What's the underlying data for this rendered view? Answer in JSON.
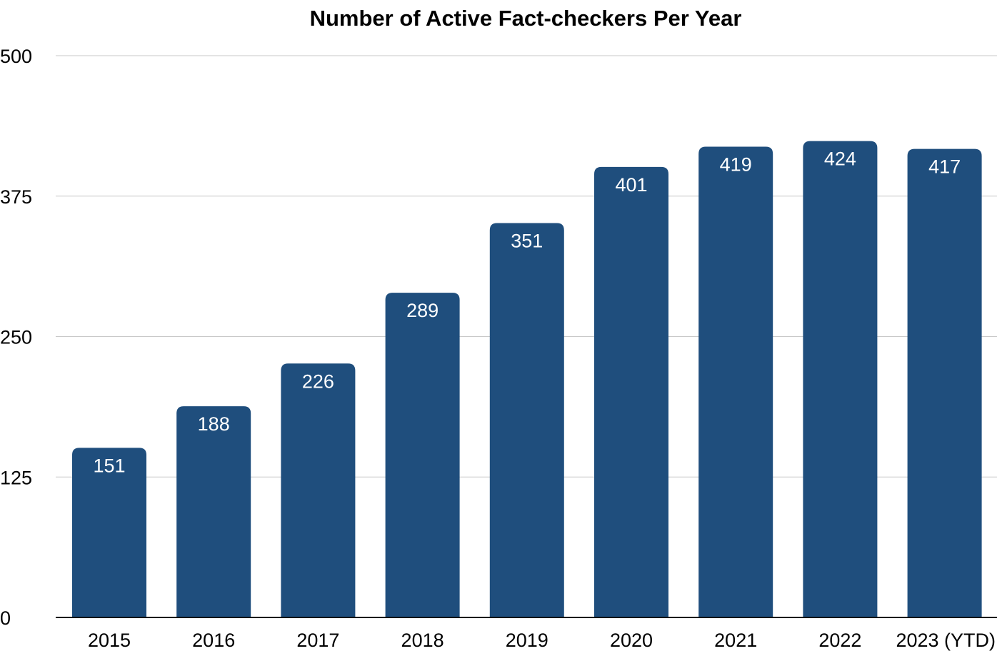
{
  "chart_data": {
    "type": "bar",
    "title": "Number of Active Fact-checkers Per Year",
    "xlabel": "",
    "ylabel": "",
    "categories": [
      "2015",
      "2016",
      "2017",
      "2018",
      "2019",
      "2020",
      "2021",
      "2022",
      "2023 (YTD)"
    ],
    "values": [
      151,
      188,
      226,
      289,
      351,
      401,
      419,
      424,
      417
    ],
    "ylim": [
      0,
      500
    ],
    "yticks": [
      0,
      125,
      250,
      375,
      500
    ],
    "grid": true,
    "legend": "none",
    "bar_color": "#1f4e7d",
    "data_labels": "inside-top"
  }
}
